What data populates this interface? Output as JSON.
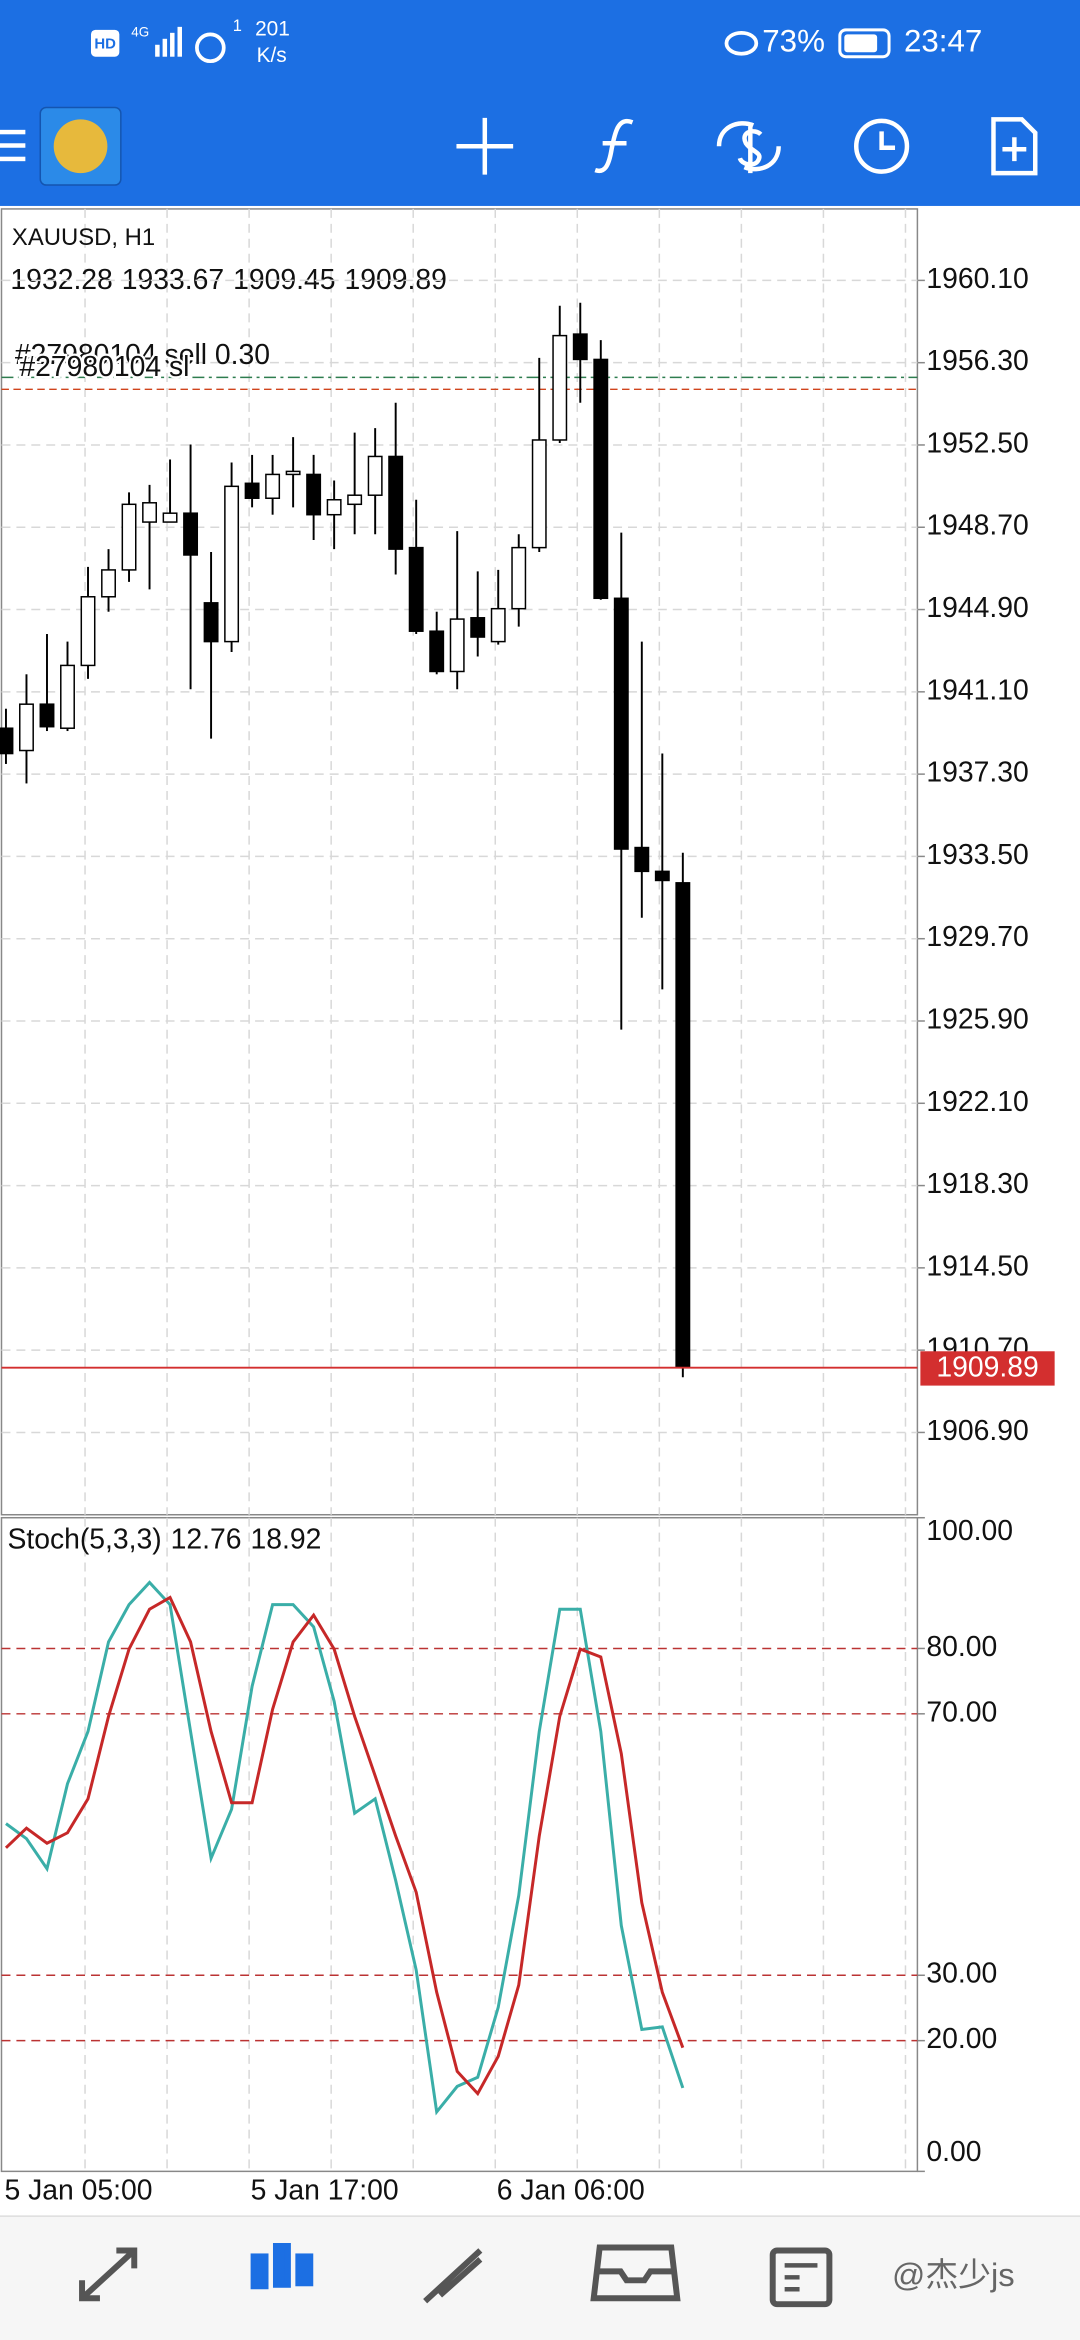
{
  "status_bar": {
    "hd": "HD",
    "network": "4G",
    "sim": "1",
    "speed": "201",
    "speed_unit": "K/s",
    "battery": "73%",
    "time": "23:47"
  },
  "chart": {
    "type": "candlestick",
    "symbol": "XAUUSD, H1",
    "ylim": [
      1903.1,
      1963.4
    ],
    "yticks": [
      {
        "value": 1960.1,
        "label": "1960.10"
      },
      {
        "value": 1956.3,
        "label": "1956.30"
      },
      {
        "value": 1952.5,
        "label": "1952.50"
      },
      {
        "value": 1948.7,
        "label": "1948.70"
      },
      {
        "value": 1944.9,
        "label": "1944.90"
      },
      {
        "value": 1941.1,
        "label": "1941.10"
      },
      {
        "value": 1937.3,
        "label": "1937.30"
      },
      {
        "value": 1933.5,
        "label": "1933.50"
      },
      {
        "value": 1929.7,
        "label": "1929.70"
      },
      {
        "value": 1925.9,
        "label": "1925.90"
      },
      {
        "value": 1922.1,
        "label": "1922.10"
      },
      {
        "value": 1918.3,
        "label": "1918.30"
      },
      {
        "value": 1914.5,
        "label": "1914.50"
      },
      {
        "value": 1910.7,
        "label": "1910.70"
      },
      {
        "value": 1906.9,
        "label": "1906.90"
      }
    ],
    "grid": true,
    "categories": [
      "5 Jan 05:00",
      null,
      null,
      null,
      null,
      null,
      null,
      null,
      null,
      null,
      null,
      null,
      "5 Jan 17:00",
      null,
      null,
      null,
      null,
      null,
      null,
      null,
      null,
      null,
      null,
      null,
      "6 Jan 06:00",
      null,
      null,
      null,
      null,
      null,
      null,
      null,
      null,
      null
    ],
    "candles": [
      {
        "open": 1939.42,
        "high": 1940.32,
        "low": 1937.77,
        "close": 1938.25
      },
      {
        "open": 1938.39,
        "high": 1941.91,
        "low": 1936.87,
        "close": 1940.53
      },
      {
        "open": 1940.53,
        "high": 1943.77,
        "low": 1939.29,
        "close": 1939.49
      },
      {
        "open": 1939.42,
        "high": 1943.42,
        "low": 1939.29,
        "close": 1942.32
      },
      {
        "open": 1942.32,
        "high": 1946.87,
        "low": 1941.7,
        "close": 1945.49
      },
      {
        "open": 1945.49,
        "high": 1947.69,
        "low": 1944.8,
        "close": 1946.73
      },
      {
        "open": 1946.73,
        "high": 1950.31,
        "low": 1946.18,
        "close": 1949.76
      },
      {
        "open": 1948.94,
        "high": 1950.66,
        "low": 1945.83,
        "close": 1949.83
      },
      {
        "open": 1948.94,
        "high": 1951.83,
        "low": 1948.94,
        "close": 1949.35
      },
      {
        "open": 1949.35,
        "high": 1952.52,
        "low": 1941.22,
        "close": 1947.42
      },
      {
        "open": 1945.21,
        "high": 1947.56,
        "low": 1938.94,
        "close": 1943.42
      },
      {
        "open": 1943.42,
        "high": 1951.69,
        "low": 1942.94,
        "close": 1950.59
      },
      {
        "open": 1950.73,
        "high": 1952.04,
        "low": 1949.62,
        "close": 1950.04
      },
      {
        "open": 1950.04,
        "high": 1952.04,
        "low": 1949.28,
        "close": 1951.14
      },
      {
        "open": 1951.14,
        "high": 1952.86,
        "low": 1949.62,
        "close": 1951.28
      },
      {
        "open": 1951.14,
        "high": 1952.04,
        "low": 1948.11,
        "close": 1949.28
      },
      {
        "open": 1949.28,
        "high": 1950.86,
        "low": 1947.69,
        "close": 1949.97
      },
      {
        "open": 1949.76,
        "high": 1953.07,
        "low": 1948.38,
        "close": 1950.18
      },
      {
        "open": 1950.18,
        "high": 1953.28,
        "low": 1948.38,
        "close": 1951.97
      },
      {
        "open": 1951.97,
        "high": 1954.45,
        "low": 1946.52,
        "close": 1947.69
      },
      {
        "open": 1947.76,
        "high": 1949.97,
        "low": 1943.77,
        "close": 1943.9
      },
      {
        "open": 1943.9,
        "high": 1944.8,
        "low": 1941.91,
        "close": 1942.04
      },
      {
        "open": 1942.04,
        "high": 1948.52,
        "low": 1941.22,
        "close": 1944.46
      },
      {
        "open": 1944.52,
        "high": 1946.66,
        "low": 1942.73,
        "close": 1943.63
      },
      {
        "open": 1943.42,
        "high": 1946.73,
        "low": 1943.28,
        "close": 1944.94
      },
      {
        "open": 1944.94,
        "high": 1948.38,
        "low": 1944.11,
        "close": 1947.76
      },
      {
        "open": 1947.76,
        "high": 1956.52,
        "low": 1947.56,
        "close": 1952.73
      },
      {
        "open": 1952.73,
        "high": 1958.93,
        "low": 1952.59,
        "close": 1957.55
      },
      {
        "open": 1957.62,
        "high": 1959.07,
        "low": 1954.45,
        "close": 1956.45
      },
      {
        "open": 1956.45,
        "high": 1957.34,
        "low": 1945.35,
        "close": 1945.42
      },
      {
        "open": 1945.42,
        "high": 1948.45,
        "low": 1925.5,
        "close": 1933.84
      },
      {
        "open": 1933.91,
        "high": 1943.42,
        "low": 1930.67,
        "close": 1932.81
      },
      {
        "open": 1932.81,
        "high": 1938.25,
        "low": 1927.36,
        "close": 1932.39
      },
      {
        "open": 1932.28,
        "high": 1933.67,
        "low": 1909.45,
        "close": 1909.89
      }
    ],
    "orders": [
      {
        "label": "#27980104 sell 0.30",
        "price": 1955.62,
        "color": "#2e7d4f"
      },
      {
        "label": "#27980104 sl",
        "price": 1955.07,
        "color": "#d0441c"
      }
    ],
    "bid_color": "#d32f2f"
  },
  "stochastic": {
    "type": "line",
    "name": "Stoch(5,3,3)",
    "ylim": [
      0,
      100
    ],
    "yticks": [
      {
        "value": 0,
        "label": "0.00"
      },
      {
        "value": 20,
        "label": "20.00"
      },
      {
        "value": 30,
        "label": "30.00"
      },
      {
        "value": 70,
        "label": "70.00"
      },
      {
        "value": 80,
        "label": "80.00"
      },
      {
        "value": 100,
        "label": "100.00"
      }
    ],
    "levels": [
      20,
      30,
      70,
      80
    ],
    "series": [
      {
        "name": "main",
        "color": "#3aaea8",
        "values": [
          53.2,
          50.9,
          46.3,
          59.3,
          67.3,
          81.0,
          86.7,
          90.1,
          86.7,
          67.3,
          47.9,
          55.4,
          74.2,
          86.7,
          86.7,
          83.3,
          71.9,
          54.8,
          57.0,
          44.5,
          30.8,
          9.1,
          13.0,
          14.4,
          25.1,
          42.2,
          67.3,
          86.0,
          86.0,
          67.3,
          37.6,
          21.7,
          22.1,
          12.76
        ]
      },
      {
        "name": "signal",
        "color": "#c62828",
        "values": [
          49.5,
          52.5,
          50.2,
          51.8,
          57.0,
          69.6,
          79.9,
          86.0,
          87.8,
          81.0,
          67.3,
          56.4,
          56.4,
          70.7,
          81.0,
          85.1,
          79.9,
          69.6,
          60.5,
          51.3,
          42.7,
          27.4,
          15.3,
          11.9,
          17.6,
          28.5,
          51.3,
          69.6,
          79.9,
          78.7,
          63.9,
          41.1,
          27.4,
          18.92
        ]
      }
    ]
  },
  "watermark": "@杰少js"
}
